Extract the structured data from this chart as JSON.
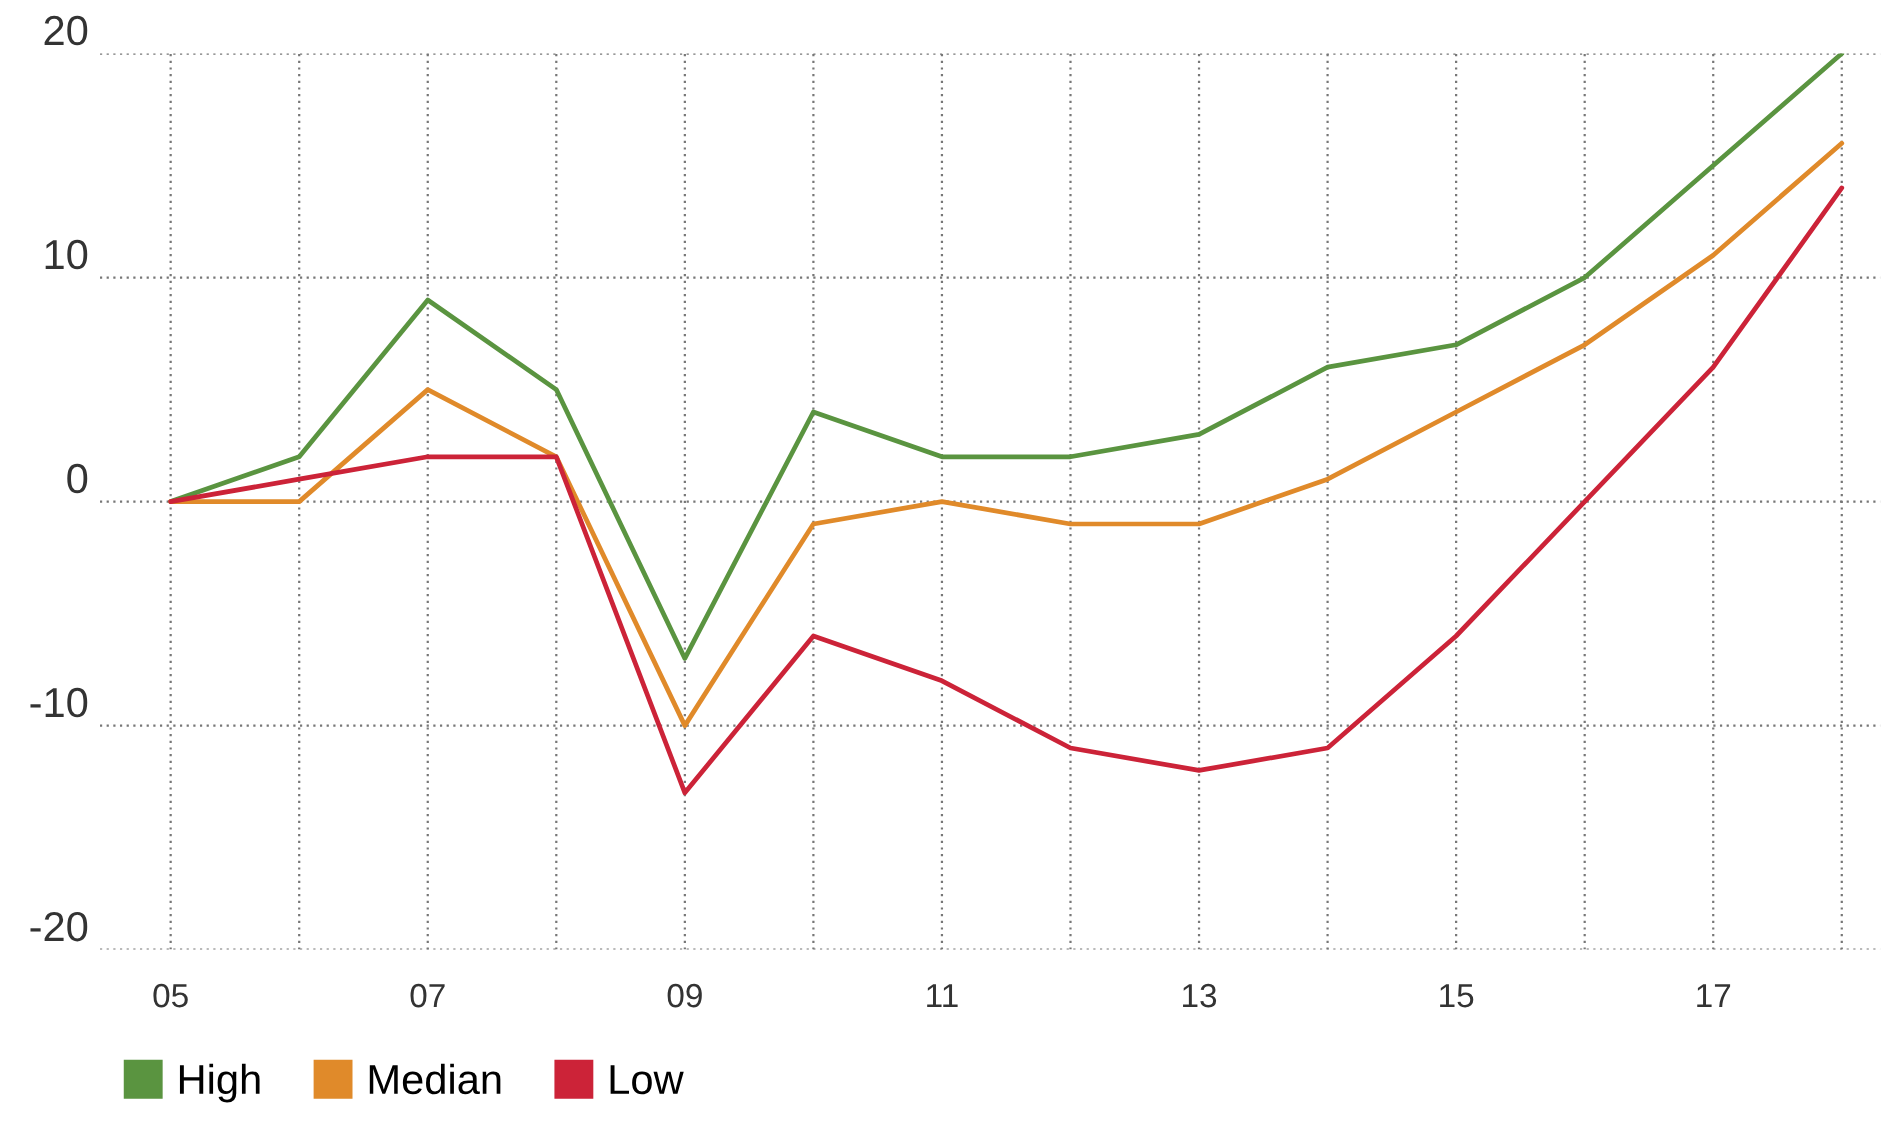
{
  "chart_data": {
    "type": "line",
    "x": [
      5,
      6,
      7,
      8,
      9,
      10,
      11,
      12,
      13,
      14,
      15,
      16,
      17,
      18
    ],
    "series": [
      {
        "name": "High",
        "color": "#5a9440",
        "values": [
          0,
          2,
          9,
          5,
          -7,
          4,
          2,
          2,
          3,
          6,
          7,
          10,
          15,
          20
        ]
      },
      {
        "name": "Median",
        "color": "#e08a2a",
        "values": [
          0,
          0,
          5,
          2,
          -10,
          -1,
          0,
          -1,
          -1,
          1,
          4,
          7,
          11,
          16
        ]
      },
      {
        "name": "Low",
        "color": "#cc2338",
        "values": [
          0,
          1,
          2,
          2,
          -13,
          -6,
          -8,
          -11,
          -12,
          -11,
          -6,
          0,
          6,
          14
        ]
      }
    ],
    "xlim": [
      4.45,
      18.3
    ],
    "xticks": [
      {
        "value": 5,
        "label": "05"
      },
      {
        "value": 6,
        "label": null
      },
      {
        "value": 7,
        "label": "07"
      },
      {
        "value": 8,
        "label": null
      },
      {
        "value": 9,
        "label": "09"
      },
      {
        "value": 10,
        "label": null
      },
      {
        "value": 11,
        "label": "11"
      },
      {
        "value": 12,
        "label": null
      },
      {
        "value": 13,
        "label": "13"
      },
      {
        "value": 14,
        "label": null
      },
      {
        "value": 15,
        "label": "15"
      },
      {
        "value": 16,
        "label": null
      },
      {
        "value": 17,
        "label": "17"
      },
      {
        "value": 18,
        "label": null
      }
    ],
    "ylim": [
      -20,
      20
    ],
    "yticks": [
      -20,
      -10,
      0,
      10,
      20
    ],
    "grid": true,
    "legend": "bottom left",
    "marker": "none",
    "line_style": "solid"
  }
}
